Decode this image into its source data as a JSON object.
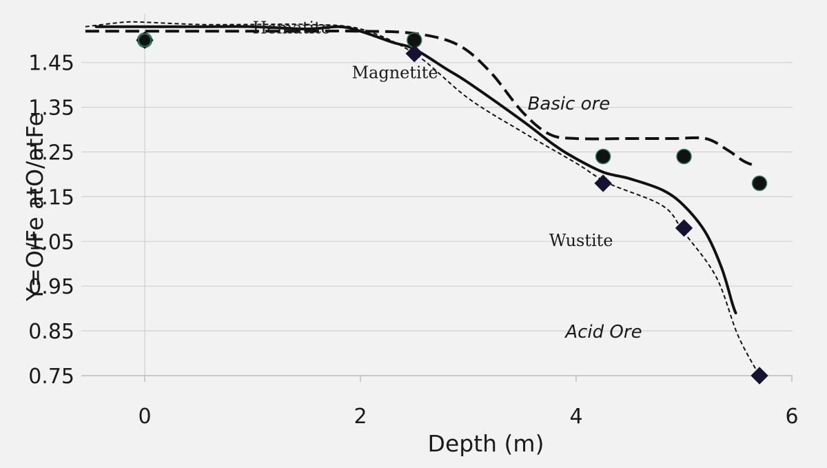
{
  "chart_data": {
    "type": "scatter",
    "title": "",
    "xlabel": "Depth (m)",
    "ylabel": "Y=O/Fe atO/atFe",
    "xlim": [
      -0.5,
      6
    ],
    "ylim": [
      0.75,
      1.55
    ],
    "xticks": [
      "0",
      "2",
      "4",
      "6"
    ],
    "yticks": [
      "1.45",
      "1.35",
      "1.25",
      "1.15",
      "1.05",
      "0.95",
      "0.85",
      "0.75"
    ],
    "grid": "horizontal",
    "series": [
      {
        "kind": "line-solid",
        "x": [
          -0.45,
          0.0,
          0.5,
          1.0,
          1.5,
          1.8,
          2.0,
          2.3,
          2.5,
          2.8,
          3.0,
          3.5,
          3.8,
          4.0,
          4.25,
          4.5,
          4.8,
          5.0,
          5.2,
          5.35,
          5.45,
          5.48
        ],
        "values": [
          1.53,
          1.53,
          1.53,
          1.53,
          1.525,
          1.53,
          1.52,
          1.495,
          1.48,
          1.435,
          1.405,
          1.32,
          1.265,
          1.235,
          1.205,
          1.19,
          1.165,
          1.13,
          1.07,
          0.99,
          0.91,
          0.89
        ]
      },
      {
        "kind": "line-long-dash",
        "x": [
          -0.55,
          0.0,
          0.5,
          1.0,
          1.5,
          2.0,
          2.5,
          2.9,
          3.2,
          3.5,
          3.75,
          4.0,
          4.5,
          4.9,
          5.2,
          5.4,
          5.55,
          5.65
        ],
        "values": [
          1.52,
          1.52,
          1.52,
          1.52,
          1.52,
          1.52,
          1.515,
          1.49,
          1.43,
          1.34,
          1.29,
          1.28,
          1.28,
          1.28,
          1.28,
          1.255,
          1.23,
          1.22
        ]
      },
      {
        "kind": "line-short-dash",
        "x": [
          -0.55,
          -0.2,
          0.0,
          0.5,
          1.0,
          1.5,
          2.0,
          2.5,
          3.0,
          3.5,
          4.0,
          4.3,
          4.8,
          5.0,
          5.3,
          5.5,
          5.7
        ],
        "values": [
          1.53,
          1.54,
          1.54,
          1.535,
          1.535,
          1.535,
          1.525,
          1.47,
          1.37,
          1.295,
          1.225,
          1.18,
          1.13,
          1.07,
          0.97,
          0.84,
          0.75
        ]
      },
      {
        "kind": "circle-markers",
        "x": [
          0.0,
          2.5,
          4.25,
          5.0,
          5.7
        ],
        "values": [
          1.5,
          1.5,
          1.24,
          1.24,
          1.18
        ]
      },
      {
        "kind": "diamond-markers",
        "x": [
          0.0,
          2.5,
          4.25,
          5.0,
          5.7
        ],
        "values": [
          1.5,
          1.47,
          1.18,
          1.08,
          0.75
        ]
      }
    ],
    "annotations": [
      {
        "text": "Hematite",
        "x": 1.0,
        "y": 1.515,
        "style": "serif"
      },
      {
        "text": "Magnetite",
        "x": 1.92,
        "y": 1.415,
        "style": "serif"
      },
      {
        "text": "Basic ore",
        "x": 3.55,
        "y": 1.345,
        "style": "italic"
      },
      {
        "text": "Wustite",
        "x": 3.75,
        "y": 1.04,
        "style": "serif"
      },
      {
        "text": "Acid Ore",
        "x": 3.9,
        "y": 0.835,
        "style": "italic"
      }
    ]
  }
}
